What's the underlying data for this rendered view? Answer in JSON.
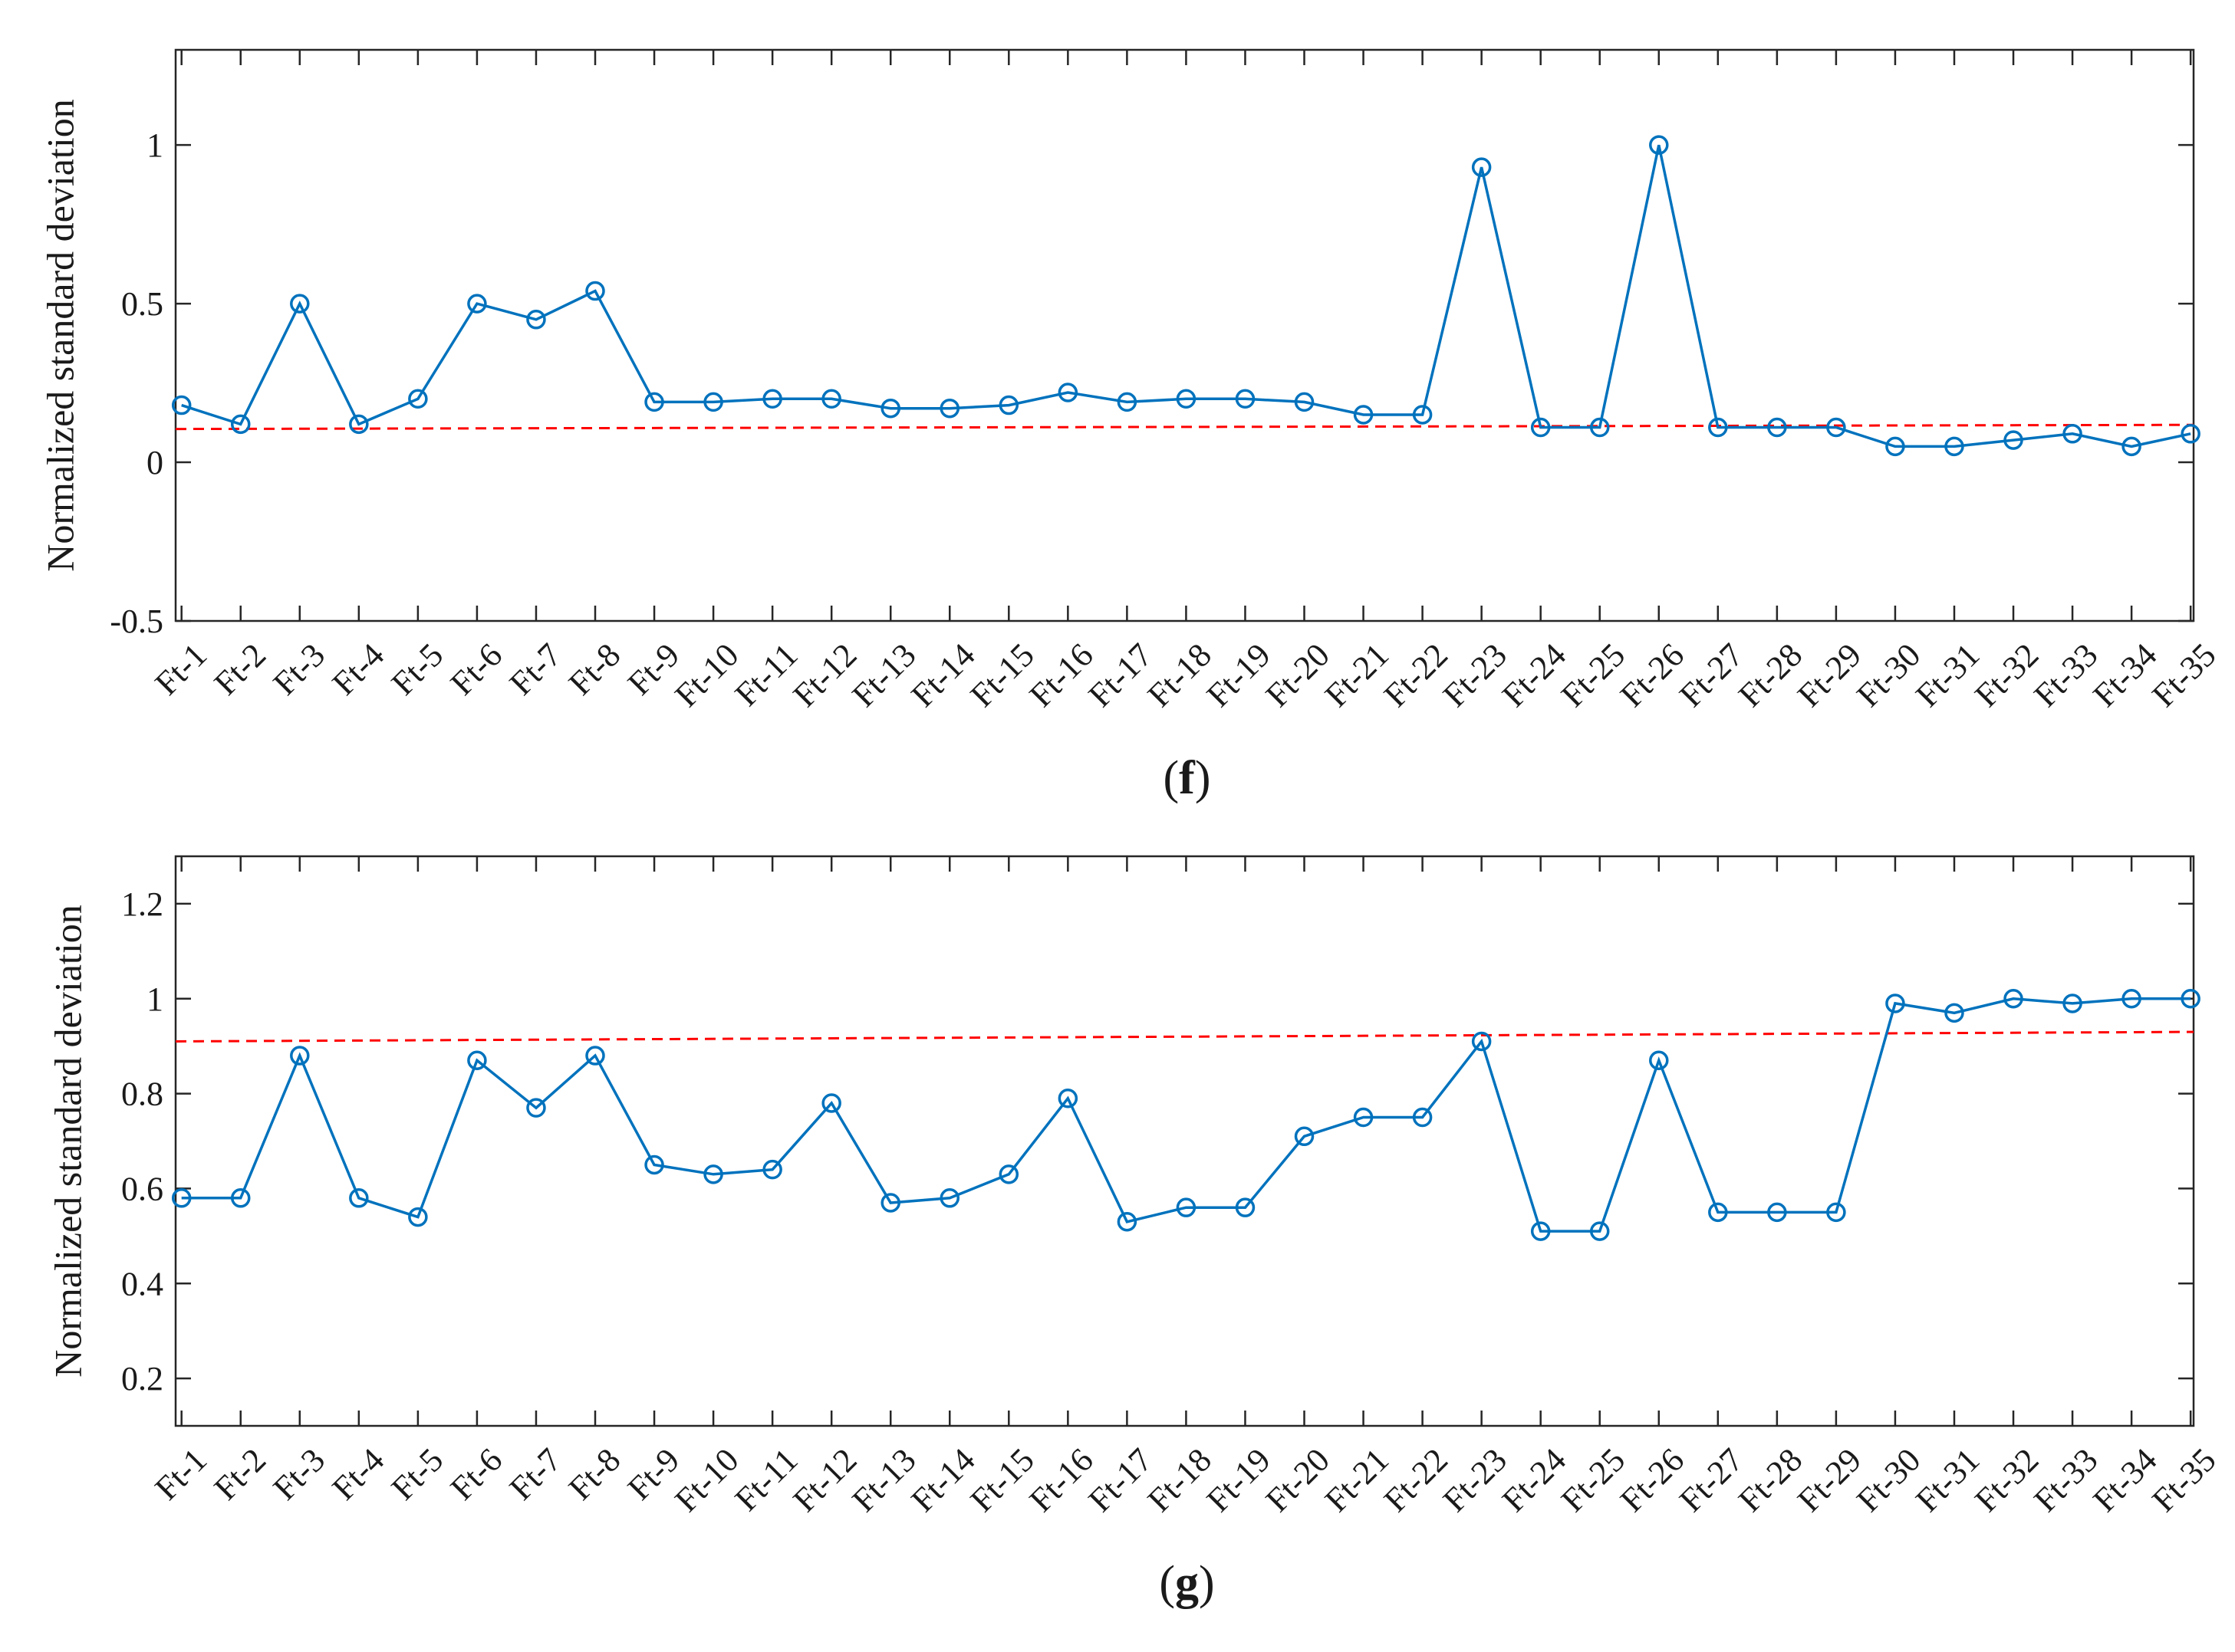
{
  "chart_data": [
    {
      "type": "line",
      "panel_label": "f",
      "ylabel": "Normalized standard deviation",
      "xlabel": "",
      "categories": [
        "Ft-1",
        "Ft-2",
        "Ft-3",
        "Ft-4",
        "Ft-5",
        "Ft-6",
        "Ft-7",
        "Ft-8",
        "Ft-9",
        "Ft-10",
        "Ft-11",
        "Ft-12",
        "Ft-13",
        "Ft-14",
        "Ft-15",
        "Ft-16",
        "Ft-17",
        "Ft-18",
        "Ft-19",
        "Ft-20",
        "Ft-21",
        "Ft-22",
        "Ft-23",
        "Ft-24",
        "Ft-25",
        "Ft-26",
        "Ft-27",
        "Ft-28",
        "Ft-29",
        "Ft-30",
        "Ft-31",
        "Ft-32",
        "Ft-33",
        "Ft-34",
        "Ft-35"
      ],
      "ylim": [
        -0.5,
        1.3
      ],
      "yticks": [
        -0.5,
        0,
        0.5,
        1
      ],
      "ytick_labels": [
        "-0.5",
        "0",
        "0.5",
        "1"
      ],
      "series": [
        {
          "name": "normalized std",
          "color": "#0072BD",
          "marker": "circle",
          "values": [
            0.18,
            0.12,
            0.5,
            0.12,
            0.2,
            0.5,
            0.45,
            0.54,
            0.19,
            0.19,
            0.2,
            0.2,
            0.17,
            0.17,
            0.18,
            0.22,
            0.19,
            0.2,
            0.2,
            0.19,
            0.15,
            0.15,
            0.93,
            0.11,
            0.11,
            1.0,
            0.11,
            0.11,
            0.11,
            0.05,
            0.05,
            0.07,
            0.09,
            0.05,
            0.09
          ]
        }
      ],
      "threshold": {
        "color": "#ff0000",
        "style": "dashed",
        "start": 0.105,
        "end": 0.118
      }
    },
    {
      "type": "line",
      "panel_label": "g",
      "ylabel": "Normalized standard deviation",
      "xlabel": "",
      "categories": [
        "Ft-1",
        "Ft-2",
        "Ft-3",
        "Ft-4",
        "Ft-5",
        "Ft-6",
        "Ft-7",
        "Ft-8",
        "Ft-9",
        "Ft-10",
        "Ft-11",
        "Ft-12",
        "Ft-13",
        "Ft-14",
        "Ft-15",
        "Ft-16",
        "Ft-17",
        "Ft-18",
        "Ft-19",
        "Ft-20",
        "Ft-21",
        "Ft-22",
        "Ft-23",
        "Ft-24",
        "Ft-25",
        "Ft-26",
        "Ft-27",
        "Ft-28",
        "Ft-29",
        "Ft-30",
        "Ft-31",
        "Ft-32",
        "Ft-33",
        "Ft-34",
        "Ft-35"
      ],
      "ylim": [
        0.1,
        1.3
      ],
      "yticks": [
        0.2,
        0.4,
        0.6,
        0.8,
        1.0,
        1.2
      ],
      "ytick_labels": [
        "0.2",
        "0.4",
        "0.6",
        "0.8",
        "1",
        "1.2"
      ],
      "series": [
        {
          "name": "normalized std",
          "color": "#0072BD",
          "marker": "circle",
          "values": [
            0.58,
            0.58,
            0.88,
            0.58,
            0.54,
            0.87,
            0.77,
            0.88,
            0.65,
            0.63,
            0.64,
            0.78,
            0.57,
            0.58,
            0.63,
            0.79,
            0.53,
            0.56,
            0.56,
            0.71,
            0.75,
            0.75,
            0.91,
            0.51,
            0.51,
            0.87,
            0.55,
            0.55,
            0.55,
            0.99,
            0.97,
            1.0,
            0.99,
            1.0,
            1.0
          ]
        }
      ],
      "threshold": {
        "color": "#ff0000",
        "style": "dashed",
        "start": 0.91,
        "end": 0.93
      }
    }
  ]
}
